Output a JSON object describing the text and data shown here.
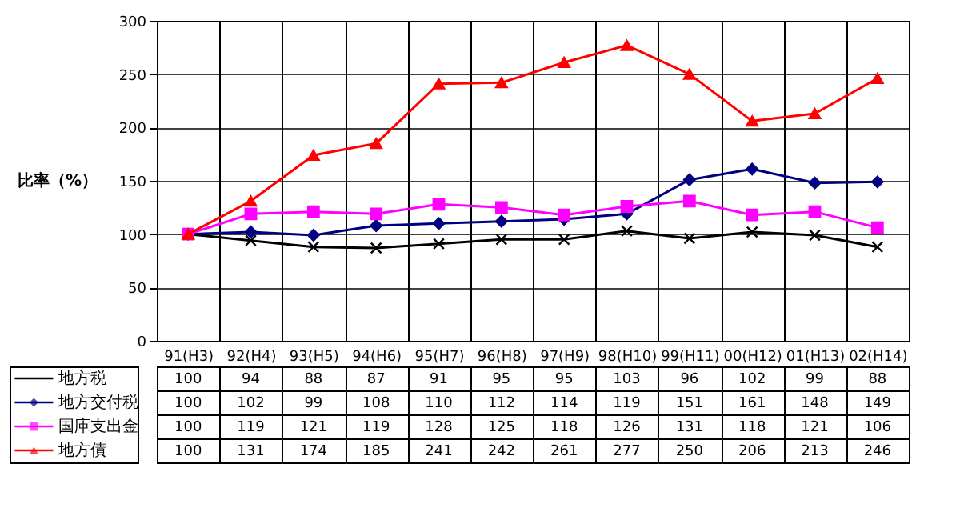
{
  "chart_data": {
    "type": "line",
    "ylabel": "比率（%）",
    "categories": [
      "91(H3)",
      "92(H4)",
      "93(H5)",
      "94(H6)",
      "95(H7)",
      "96(H8)",
      "97(H9)",
      "98(H10)",
      "99(H11)",
      "00(H12)",
      "01(H13)",
      "02(H14)"
    ],
    "series": [
      {
        "name": "地方税",
        "color": "#000000",
        "marker": "cross",
        "values": [
          100,
          94,
          88,
          87,
          91,
          95,
          95,
          103,
          96,
          102,
          99,
          88
        ]
      },
      {
        "name": "地方交付税",
        "color": "#000080",
        "marker": "diamond",
        "values": [
          100,
          102,
          99,
          108,
          110,
          112,
          114,
          119,
          151,
          161,
          148,
          149
        ]
      },
      {
        "name": "国庫支出金",
        "color": "#ff00ff",
        "marker": "square",
        "values": [
          100,
          119,
          121,
          119,
          128,
          125,
          118,
          126,
          131,
          118,
          121,
          106
        ]
      },
      {
        "name": "地方債",
        "color": "#ff0000",
        "marker": "triangle",
        "values": [
          100,
          131,
          174,
          185,
          241,
          242,
          261,
          277,
          250,
          206,
          213,
          246
        ]
      }
    ],
    "ylim": [
      0,
      300
    ],
    "yticks": [
      0,
      50,
      100,
      150,
      200,
      250,
      300
    ],
    "grid": true,
    "data_labels": true,
    "legend": "bottom left"
  }
}
